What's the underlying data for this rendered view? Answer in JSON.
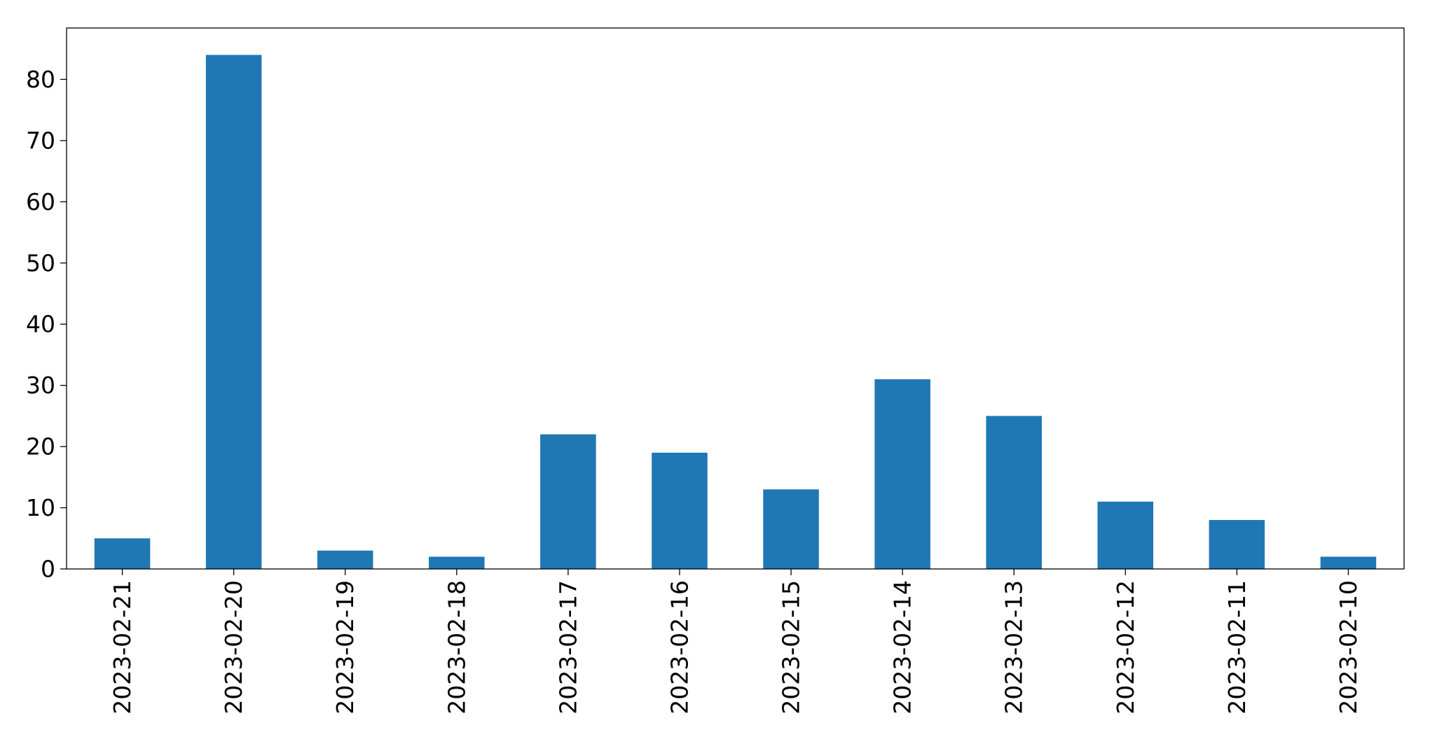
{
  "chart_data": {
    "type": "bar",
    "title": "",
    "xlabel": "",
    "ylabel": "",
    "categories": [
      "2023-02-21",
      "2023-02-20",
      "2023-02-19",
      "2023-02-18",
      "2023-02-17",
      "2023-02-16",
      "2023-02-15",
      "2023-02-14",
      "2023-02-13",
      "2023-02-12",
      "2023-02-11",
      "2023-02-10"
    ],
    "values": [
      5,
      84,
      3,
      2,
      22,
      19,
      13,
      31,
      25,
      11,
      8,
      2
    ],
    "ylim": [
      0,
      88.4
    ],
    "yticks": [
      0,
      10,
      20,
      30,
      40,
      50,
      60,
      70,
      80
    ],
    "x_tick_rotation": "vertical",
    "grid": false,
    "legend": "none",
    "bar_color": "#1f77b4"
  }
}
